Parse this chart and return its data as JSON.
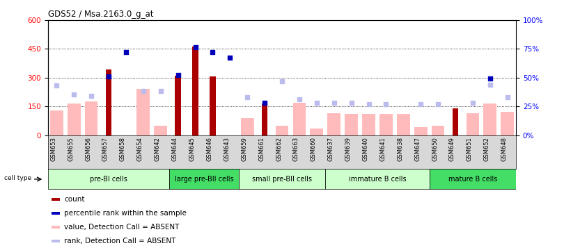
{
  "title": "GDS52 / Msa.2163.0_g_at",
  "samples": [
    "GSM653",
    "GSM655",
    "GSM656",
    "GSM657",
    "GSM658",
    "GSM654",
    "GSM642",
    "GSM644",
    "GSM645",
    "GSM646",
    "GSM643",
    "GSM659",
    "GSM661",
    "GSM662",
    "GSM663",
    "GSM660",
    "GSM637",
    "GSM639",
    "GSM640",
    "GSM641",
    "GSM638",
    "GSM647",
    "GSM650",
    "GSM649",
    "GSM651",
    "GSM652",
    "GSM648"
  ],
  "count_values": [
    0,
    0,
    0,
    340,
    0,
    0,
    0,
    310,
    460,
    305,
    0,
    0,
    165,
    0,
    0,
    0,
    0,
    0,
    0,
    0,
    0,
    0,
    0,
    140,
    0,
    0,
    0
  ],
  "percentile_values": [
    0,
    0,
    0,
    51,
    72,
    0,
    0,
    52,
    76,
    72,
    67,
    0,
    28,
    0,
    0,
    0,
    0,
    0,
    0,
    0,
    0,
    0,
    0,
    0,
    0,
    49,
    0
  ],
  "value_absent": [
    130,
    165,
    175,
    0,
    0,
    240,
    50,
    0,
    0,
    0,
    0,
    90,
    0,
    50,
    170,
    35,
    115,
    110,
    110,
    110,
    110,
    40,
    50,
    0,
    115,
    165,
    120
  ],
  "rank_absent": [
    43,
    35,
    34,
    0,
    0,
    38,
    38,
    0,
    0,
    0,
    0,
    33,
    0,
    47,
    31,
    28,
    28,
    28,
    27,
    27,
    0,
    27,
    27,
    0,
    28,
    44,
    33
  ],
  "cell_groups": [
    {
      "label": "pre-BI cells",
      "start": 0,
      "end": 7,
      "color": "#ccffcc",
      "dark": false
    },
    {
      "label": "large pre-BII cells",
      "start": 7,
      "end": 11,
      "color": "#44dd66",
      "dark": true
    },
    {
      "label": "small pre-BII cells",
      "start": 11,
      "end": 16,
      "color": "#ccffcc",
      "dark": false
    },
    {
      "label": "immature B cells",
      "start": 16,
      "end": 22,
      "color": "#ccffcc",
      "dark": false
    },
    {
      "label": "mature B cells",
      "start": 22,
      "end": 27,
      "color": "#44dd66",
      "dark": true
    }
  ],
  "ylim_left": [
    0,
    600
  ],
  "ylim_right": [
    0,
    100
  ],
  "yticks_left": [
    0,
    150,
    300,
    450,
    600
  ],
  "yticks_right": [
    0,
    25,
    50,
    75,
    100
  ],
  "yticklabels_left": [
    "0",
    "150",
    "300",
    "450",
    "600"
  ],
  "yticklabels_right": [
    "0%",
    "25%",
    "50%",
    "75%",
    "100%"
  ],
  "bar_color_count": "#aa0000",
  "bar_color_percentile": "#0000bb",
  "bar_color_value_absent": "#ffbbbb",
  "bar_color_rank_absent": "#bbbbee",
  "legend_items": [
    {
      "label": "count",
      "color": "#aa0000"
    },
    {
      "label": "percentile rank within the sample",
      "color": "#0000bb"
    },
    {
      "label": "value, Detection Call = ABSENT",
      "color": "#ffbbbb"
    },
    {
      "label": "rank, Detection Call = ABSENT",
      "color": "#bbbbee"
    }
  ]
}
